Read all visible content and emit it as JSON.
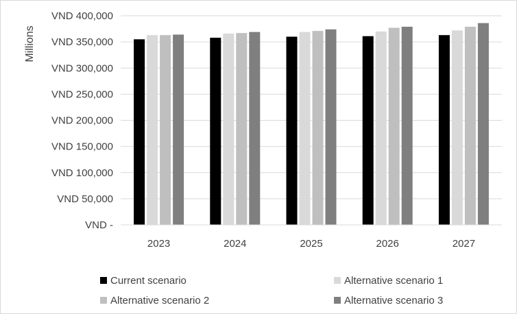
{
  "chart_data": {
    "type": "bar",
    "categories": [
      "2023",
      "2024",
      "2025",
      "2026",
      "2027"
    ],
    "series": [
      {
        "name": "Current scenario",
        "color": "#000000",
        "values": [
          355000,
          358000,
          360000,
          361000,
          363000
        ]
      },
      {
        "name": "Alternative scenario 1",
        "color": "#d9d9d9",
        "values": [
          363000,
          366000,
          369000,
          370000,
          372000
        ]
      },
      {
        "name": "Alternative scenario 2",
        "color": "#bfbfbf",
        "values": [
          363000,
          367000,
          371000,
          377000,
          379000
        ]
      },
      {
        "name": "Alternative scenario 3",
        "color": "#7f7f7f",
        "values": [
          364000,
          369000,
          374000,
          379000,
          386000
        ]
      }
    ],
    "ylabel": "Millions",
    "ylim": [
      0,
      400000
    ],
    "yticks": [
      0,
      50000,
      100000,
      150000,
      200000,
      250000,
      300000,
      350000,
      400000
    ],
    "ytick_labels": [
      "VND -",
      "VND 50,000",
      "VND 100,000",
      "VND 150,000",
      "VND 200,000",
      "VND 250,000",
      "VND 300,000",
      "VND 350,000",
      "VND 400,000"
    ],
    "grid": true,
    "legend": "bottom"
  }
}
